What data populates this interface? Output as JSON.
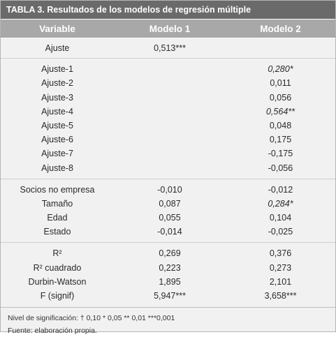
{
  "title": {
    "label": "TABLA 3.",
    "text": " Resultados de los modelos de regresión múltiple"
  },
  "headers": [
    "Variable",
    "Modelo 1",
    "Modelo 2"
  ],
  "groups": [
    [
      {
        "variable": "Ajuste",
        "m1": "0,513***",
        "m2": "",
        "m1_italic": false,
        "m2_italic": false
      }
    ],
    [
      {
        "variable": "Ajuste-1",
        "m1": "",
        "m2": "0,280*",
        "m1_italic": false,
        "m2_italic": true
      },
      {
        "variable": "Ajuste-2",
        "m1": "",
        "m2": "0,011",
        "m1_italic": false,
        "m2_italic": false
      },
      {
        "variable": "Ajuste-3",
        "m1": "",
        "m2": "0,056",
        "m1_italic": false,
        "m2_italic": false
      },
      {
        "variable": "Ajuste-4",
        "m1": "",
        "m2": "0,564**",
        "m1_italic": false,
        "m2_italic": true
      },
      {
        "variable": "Ajuste-5",
        "m1": "",
        "m2": "0,048",
        "m1_italic": false,
        "m2_italic": false
      },
      {
        "variable": "Ajuste-6",
        "m1": "",
        "m2": "0,175",
        "m1_italic": false,
        "m2_italic": false
      },
      {
        "variable": "Ajuste-7",
        "m1": "",
        "m2": "-0,175",
        "m1_italic": false,
        "m2_italic": false
      },
      {
        "variable": "Ajuste-8",
        "m1": "",
        "m2": "-0,056",
        "m1_italic": false,
        "m2_italic": false
      }
    ],
    [
      {
        "variable": "Socios no empresa",
        "m1": "-0,010",
        "m2": "-0,012",
        "m1_italic": false,
        "m2_italic": false
      },
      {
        "variable": "Tamaño",
        "m1": "0,087",
        "m2": "0,284*",
        "m1_italic": false,
        "m2_italic": true
      },
      {
        "variable": "Edad",
        "m1": "0,055",
        "m2": "0,104",
        "m1_italic": false,
        "m2_italic": false
      },
      {
        "variable": "Estado",
        "m1": "-0,014",
        "m2": "-0,025",
        "m1_italic": false,
        "m2_italic": false
      }
    ],
    [
      {
        "variable": "R²",
        "m1": "0,269",
        "m2": "0,376",
        "m1_italic": false,
        "m2_italic": false
      },
      {
        "variable": "R² cuadrado",
        "m1": "0,223",
        "m2": "0,273",
        "m1_italic": false,
        "m2_italic": false
      },
      {
        "variable": "Durbin-Watson",
        "m1": "1,895",
        "m2": "2,101",
        "m1_italic": false,
        "m2_italic": false
      },
      {
        "variable": "F (signif)",
        "m1": "5,947***",
        "m2": "3,658***",
        "m1_italic": false,
        "m2_italic": false
      }
    ]
  ],
  "notes": {
    "significance": "Nivel de significación: † 0,10  * 0,05 ** 0,01  ***0,001",
    "source": "Fuente: elaboración propia."
  },
  "colors": {
    "title_bg": "#6a6a6a",
    "header_bg": "#a8a8a8",
    "body_bg": "#f1f1f1"
  }
}
